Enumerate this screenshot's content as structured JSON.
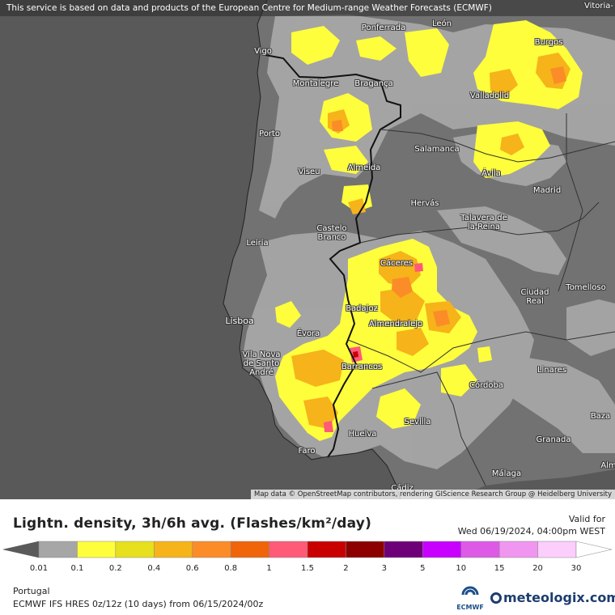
{
  "banner": "This service is based on data and products of the European Centre for Medium-range Weather Forecasts (ECMWF)",
  "attribution": "Map data © OpenStreetMap contributors, rendering GIScience Research Group @ Heidelberg University",
  "cities": {
    "vitoria": "Vitoria-",
    "vigo": "Vigo",
    "ponferrada": "Ponferrada",
    "leon": "León",
    "burgos": "Burgos",
    "montalegre": "Montalegre",
    "braganca": "Bragança",
    "valladolid": "Valladolid",
    "porto": "Porto",
    "salamanca": "Salamanca",
    "viseu": "Viseu",
    "almeida": "Almeida",
    "avila": "Ávila",
    "madrid": "Madrid",
    "hervas": "Hervás",
    "talavera": "Talavera de la Reina",
    "castelo": "Castelo Branco",
    "leiria": "Leiria",
    "caceres": "Cáceres",
    "ciudad": "Ciudad Real",
    "tomelloso": "Tomelloso",
    "lisboa": "Lisboa",
    "badajoz": "Badajoz",
    "almendralejo": "Almendralejo",
    "evora": "Évora",
    "vilanova": "Vila Nova de Santo André",
    "barrancos": "Barrancos",
    "linares": "Linares",
    "cordoba": "Córdoba",
    "baza": "Baza",
    "sevilla": "Sevilla",
    "huelva": "Huelva",
    "granada": "Granada",
    "faro": "Faro",
    "malaga": "Málaga",
    "alm": "Alm",
    "cadiz": "Cádiz"
  },
  "legend": {
    "title": "Lightn. density, 3h/6h avg. (Flashes/km²/day)",
    "valid_label": "Valid for",
    "valid_time": "Wed 06/19/2024, 04:00pm WEST",
    "ticks": [
      "0.01",
      "0.1",
      "0.2",
      "0.4",
      "0.6",
      "0.8",
      "1",
      "1.5",
      "2",
      "3",
      "5",
      "10",
      "15",
      "20",
      "30"
    ],
    "colors": [
      "#a6a6a6",
      "#fefe3c",
      "#e6e01e",
      "#f6b31a",
      "#fb8c28",
      "#f0640a",
      "#ff5a78",
      "#c80000",
      "#8c0000",
      "#6e0078",
      "#c800ff",
      "#dc5ae6",
      "#f096f0",
      "#fccefc"
    ],
    "region": "Portugal",
    "model": "ECMWF IFS HRES 0z/12z (10 days) from 06/15/2024/00z",
    "ecmwf_label": "ECMWF",
    "brand": "meteologix.com"
  }
}
